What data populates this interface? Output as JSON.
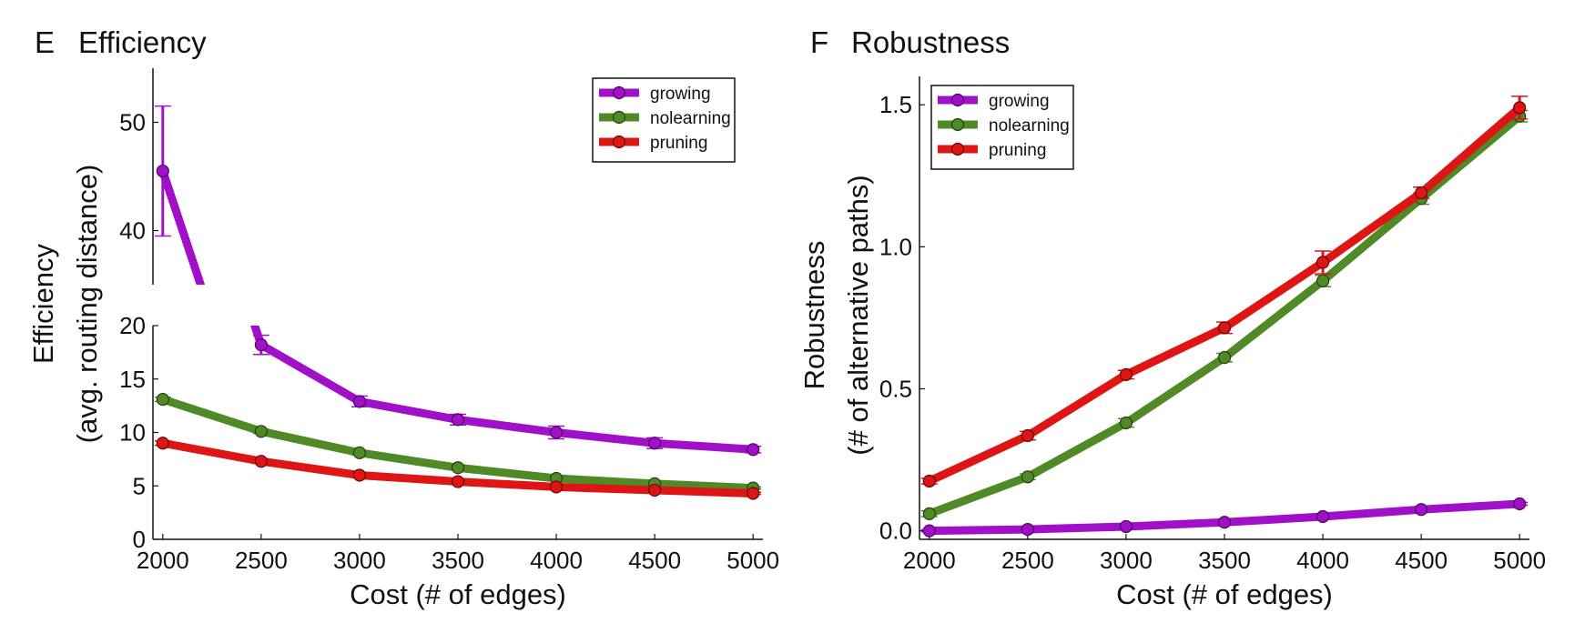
{
  "chart_data": [
    {
      "panel_letter": "E",
      "title": "Efficiency",
      "type": "line",
      "xlabel": "Cost (# of edges)",
      "ylabel": [
        "Efficiency",
        "(avg. routing distance)"
      ],
      "xlim": [
        1950,
        5050
      ],
      "x_ticks": [
        2000,
        2500,
        3000,
        3500,
        4000,
        4500,
        5000
      ],
      "broken_y_axis": true,
      "ylim_lower": [
        0,
        20
      ],
      "ylim_upper": [
        35,
        55
      ],
      "y_ticks_lower": [
        0,
        5,
        10,
        15,
        20
      ],
      "y_ticks_upper": [
        40,
        50
      ],
      "legend_position": "top-right",
      "x": [
        2000,
        2500,
        3000,
        3500,
        4000,
        4500,
        5000
      ],
      "series": [
        {
          "name": "growing",
          "color": "#a010c8",
          "values": [
            45.5,
            18.2,
            12.9,
            11.2,
            10.0,
            9.0,
            8.4
          ],
          "errors": [
            6.0,
            0.9,
            0.5,
            0.5,
            0.6,
            0.5,
            0.3
          ]
        },
        {
          "name": "nolearning",
          "color": "#4f8a26",
          "values": [
            13.1,
            10.1,
            8.1,
            6.7,
            5.7,
            5.2,
            4.8
          ],
          "errors": [
            0.2,
            0.2,
            0.2,
            0.2,
            0.15,
            0.1,
            0.1
          ]
        },
        {
          "name": "pruning",
          "color": "#dd1515",
          "values": [
            9.0,
            7.3,
            6.0,
            5.4,
            4.9,
            4.6,
            4.3
          ],
          "errors": [
            0.2,
            0.2,
            0.2,
            0.15,
            0.1,
            0.1,
            0.1
          ]
        }
      ]
    },
    {
      "panel_letter": "F",
      "title": "Robustness",
      "type": "line",
      "xlabel": "Cost (# of edges)",
      "ylabel": [
        "Robustness",
        "(# of alternative paths)"
      ],
      "xlim": [
        1950,
        5050
      ],
      "x_ticks": [
        2000,
        2500,
        3000,
        3500,
        4000,
        4500,
        5000
      ],
      "ylim": [
        -0.03,
        1.6
      ],
      "y_ticks": [
        0.0,
        0.5,
        1.0,
        1.5
      ],
      "legend_position": "top-left",
      "x": [
        2000,
        2500,
        3000,
        3500,
        4000,
        4500,
        5000
      ],
      "series": [
        {
          "name": "growing",
          "color": "#a010c8",
          "values": [
            0.0,
            0.005,
            0.015,
            0.03,
            0.05,
            0.075,
            0.095
          ],
          "errors": [
            0.004,
            0.004,
            0.004,
            0.004,
            0.005,
            0.005,
            0.005
          ]
        },
        {
          "name": "nolearning",
          "color": "#4f8a26",
          "values": [
            0.06,
            0.19,
            0.38,
            0.61,
            0.88,
            1.17,
            1.46
          ],
          "errors": [
            0.01,
            0.01,
            0.015,
            0.015,
            0.02,
            0.02,
            0.02
          ]
        },
        {
          "name": "pruning",
          "color": "#dd1515",
          "values": [
            0.175,
            0.335,
            0.55,
            0.715,
            0.945,
            1.19,
            1.49
          ],
          "errors": [
            0.01,
            0.015,
            0.015,
            0.02,
            0.04,
            0.02,
            0.04
          ]
        }
      ]
    }
  ]
}
